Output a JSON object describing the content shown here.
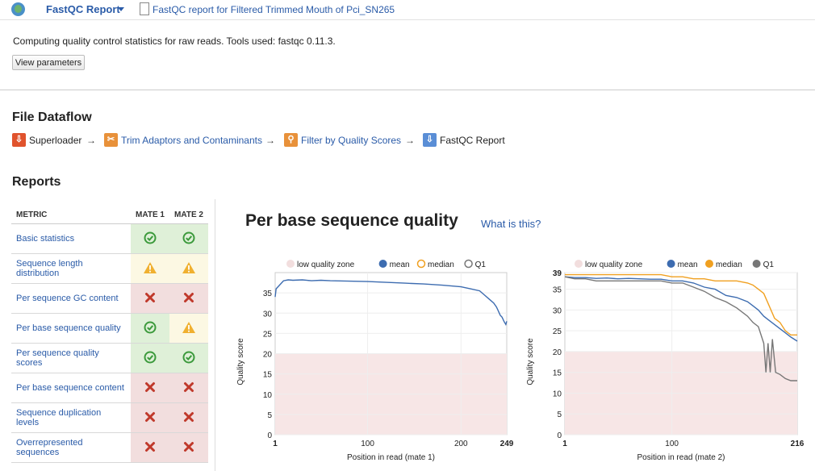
{
  "header": {
    "app_name": "FastQC Report",
    "doc_title": "FastQC report for Filtered Trimmed Mouth of Pci_SN265"
  },
  "description": "Computing quality control statistics for raw reads. Tools used: fastqc 0.11.3.",
  "view_params_label": "View parameters",
  "dataflow": {
    "title": "File Dataflow",
    "steps": [
      {
        "label": "Superloader",
        "icon": "superloader-icon",
        "color": "#e0532d",
        "link": false
      },
      {
        "label": "Trim Adaptors and Contaminants",
        "icon": "trim-icon",
        "color": "#e8913a",
        "link": true
      },
      {
        "label": "Filter by Quality Scores",
        "icon": "filter-icon",
        "color": "#e8913a",
        "link": true
      },
      {
        "label": "FastQC Report",
        "icon": "fastqc-icon",
        "color": "#5a8ed6",
        "link": false
      }
    ],
    "arrow": "→"
  },
  "reports": {
    "title": "Reports",
    "columns": [
      "METRIC",
      "MATE 1",
      "MATE 2"
    ],
    "rows": [
      {
        "metric": "Basic statistics",
        "mate1": "pass",
        "mate2": "pass"
      },
      {
        "metric": "Sequence length distribution",
        "mate1": "warn",
        "mate2": "warn"
      },
      {
        "metric": "Per sequence GC content",
        "mate1": "fail",
        "mate2": "fail"
      },
      {
        "metric": "Per base sequence quality",
        "mate1": "pass",
        "mate2": "warn"
      },
      {
        "metric": "Per sequence quality scores",
        "mate1": "pass",
        "mate2": "pass"
      },
      {
        "metric": "Per base sequence content",
        "mate1": "fail",
        "mate2": "fail"
      },
      {
        "metric": "Sequence duplication levels",
        "mate1": "fail",
        "mate2": "fail"
      },
      {
        "metric": "Overrepresented sequences",
        "mate1": "fail",
        "mate2": "fail"
      }
    ]
  },
  "plot": {
    "title": "Per base sequence quality",
    "what_is_this": "What is this?"
  },
  "chart_data": [
    {
      "type": "line",
      "xlabel": "Position in read (mate 1)",
      "ylabel": "Quality score",
      "xlim": [
        1,
        249
      ],
      "ylim": [
        0,
        40
      ],
      "xticks": [
        1,
        100,
        200,
        249
      ],
      "yticks": [
        0,
        5,
        10,
        15,
        20,
        25,
        30,
        35
      ],
      "low_quality_zone": [
        0,
        20
      ],
      "legend": [
        "low quality zone",
        "mean",
        "median",
        "Q1"
      ],
      "legend_colors": [
        "#f2dede",
        "#3d6cb0",
        "#f0a020",
        "#777777"
      ],
      "series": [
        {
          "name": "mean",
          "color": "#3d6cb0",
          "x": [
            1,
            2,
            4,
            6,
            8,
            10,
            15,
            20,
            30,
            40,
            50,
            60,
            80,
            100,
            120,
            140,
            160,
            180,
            200,
            210,
            220,
            225,
            230,
            235,
            238,
            240,
            242,
            244,
            246,
            248,
            249
          ],
          "y": [
            34,
            36,
            36.5,
            37,
            37.5,
            38,
            38.2,
            38.1,
            38.2,
            38,
            38.1,
            38,
            37.9,
            37.8,
            37.6,
            37.4,
            37.2,
            36.9,
            36.5,
            36,
            35.5,
            34.5,
            33.5,
            32.5,
            31.5,
            30.5,
            29.5,
            29,
            28,
            27.2,
            28
          ]
        }
      ]
    },
    {
      "type": "line",
      "xlabel": "Position in read (mate 2)",
      "ylabel": "Quality score",
      "xlim": [
        1,
        216
      ],
      "ylim": [
        0,
        39
      ],
      "xticks": [
        1,
        100,
        216
      ],
      "yticks": [
        0,
        5,
        10,
        15,
        20,
        25,
        30,
        35,
        39
      ],
      "low_quality_zone": [
        0,
        20
      ],
      "legend": [
        "low quality zone",
        "mean",
        "median",
        "Q1"
      ],
      "legend_colors": [
        "#f2dede",
        "#3d6cb0",
        "#f0a020",
        "#777777"
      ],
      "series": [
        {
          "name": "median",
          "color": "#f0a020",
          "x": [
            1,
            10,
            20,
            30,
            40,
            50,
            60,
            70,
            80,
            90,
            100,
            110,
            120,
            130,
            140,
            150,
            160,
            170,
            175,
            180,
            185,
            190,
            195,
            200,
            205,
            210,
            216
          ],
          "y": [
            38.5,
            38.5,
            38.5,
            38.5,
            38.5,
            38.5,
            38.5,
            38.5,
            38.5,
            38.5,
            38,
            38,
            37.5,
            37.5,
            37,
            37,
            37,
            36.5,
            36,
            35,
            34,
            31,
            28,
            27,
            25,
            24,
            24
          ]
        },
        {
          "name": "mean",
          "color": "#3d6cb0",
          "x": [
            1,
            10,
            20,
            30,
            40,
            50,
            60,
            70,
            80,
            90,
            100,
            110,
            120,
            130,
            140,
            150,
            160,
            170,
            175,
            180,
            185,
            190,
            195,
            200,
            205,
            210,
            216
          ],
          "y": [
            38,
            37.8,
            37.8,
            37.6,
            37.7,
            37.5,
            37.6,
            37.5,
            37.4,
            37.4,
            37,
            37,
            36.5,
            35.5,
            35,
            33.5,
            33,
            32,
            31,
            30,
            28.5,
            27.5,
            26.5,
            25.5,
            24.5,
            23.5,
            22.5
          ]
        },
        {
          "name": "Q1",
          "color": "#777777",
          "x": [
            1,
            10,
            20,
            30,
            40,
            50,
            60,
            70,
            80,
            90,
            100,
            110,
            120,
            130,
            140,
            150,
            160,
            170,
            175,
            180,
            185,
            187,
            189,
            191,
            193,
            196,
            200,
            205,
            210,
            216
          ],
          "y": [
            38,
            37.5,
            37.5,
            37,
            37,
            37,
            37,
            37,
            37,
            37,
            36.5,
            36.5,
            35.5,
            34.5,
            33,
            32,
            30.5,
            28.5,
            27,
            26,
            22,
            15,
            22,
            15,
            23,
            15,
            14.5,
            13.5,
            13,
            13
          ]
        }
      ]
    }
  ]
}
